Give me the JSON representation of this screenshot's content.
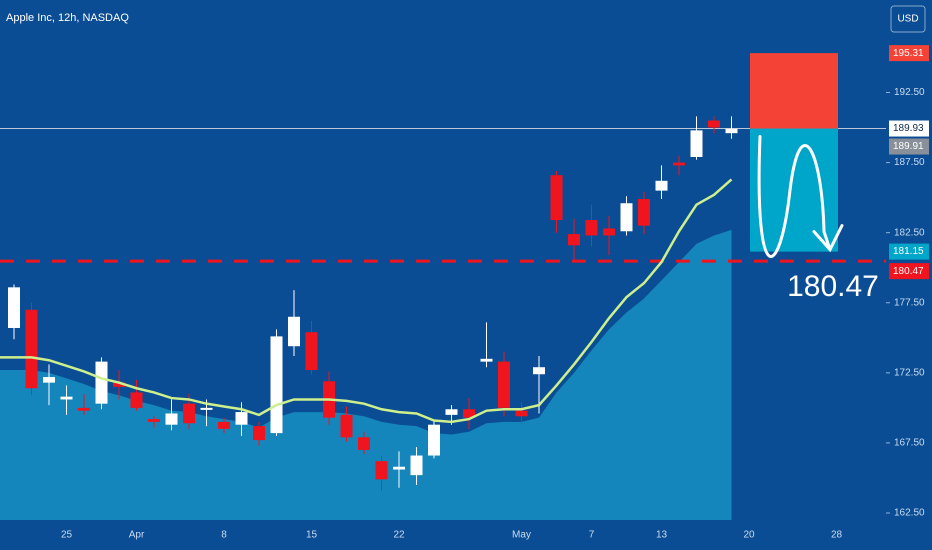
{
  "chart_data": {
    "type": "candlestick",
    "title": "Apple Inc, 12h, NASDAQ",
    "currency": "USD",
    "categories": [
      null,
      null,
      null,
      "25",
      null,
      null,
      null,
      "Apr",
      null,
      null,
      null,
      null,
      "8",
      null,
      null,
      null,
      null,
      "15",
      null,
      null,
      null,
      null,
      "22",
      null,
      null,
      null,
      null,
      null,
      null,
      "May",
      null,
      null,
      null,
      "7",
      null,
      null,
      null,
      "13",
      null,
      null,
      null,
      null,
      "20",
      null,
      null,
      null,
      null,
      "28"
    ],
    "open": [
      175.7,
      177.0,
      171.8,
      170.6,
      170.0,
      170.3,
      171.8,
      171.1,
      169.2,
      168.8,
      170.3,
      169.9,
      169.0,
      168.8,
      168.7,
      168.2,
      174.4,
      175.4,
      171.9,
      169.5,
      167.9,
      166.2,
      165.6,
      165.2,
      166.6,
      169.5,
      169.9,
      173.3,
      173.3,
      169.8,
      172.4,
      186.6,
      182.4,
      183.4,
      182.8,
      182.6,
      184.9,
      185.5,
      187.5,
      187.9,
      190.5,
      189.6,
      null,
      null,
      null,
      null,
      null,
      null
    ],
    "high": [
      178.8,
      177.5,
      173.1,
      171.6,
      171.0,
      173.6,
      172.7,
      172.0,
      169.4,
      170.6,
      171.0,
      170.6,
      169.3,
      170.4,
      169.0,
      175.6,
      178.4,
      176.2,
      172.6,
      170.1,
      168.3,
      166.6,
      166.9,
      167.2,
      169.1,
      170.2,
      170.7,
      176.1,
      174.0,
      170.4,
      173.7,
      186.9,
      183.5,
      184.5,
      183.7,
      185.1,
      185.4,
      187.3,
      188.0,
      190.8,
      190.8,
      190.8,
      null,
      null,
      null,
      null,
      null,
      null
    ],
    "low": [
      174.9,
      170.9,
      170.2,
      169.5,
      169.5,
      169.9,
      170.6,
      169.8,
      168.6,
      168.4,
      168.5,
      168.7,
      168.2,
      168.0,
      167.3,
      168.0,
      173.7,
      172.4,
      168.8,
      167.6,
      166.7,
      164.1,
      164.3,
      164.5,
      166.4,
      168.8,
      168.5,
      172.9,
      169.4,
      168.9,
      169.6,
      182.5,
      180.5,
      181.5,
      180.9,
      182.3,
      182.4,
      184.9,
      186.6,
      187.7,
      189.6,
      189.2,
      null,
      null,
      null,
      null,
      null,
      null
    ],
    "close": [
      178.6,
      171.4,
      172.2,
      170.8,
      169.8,
      173.3,
      171.5,
      170.0,
      169.0,
      169.6,
      168.9,
      170.0,
      168.5,
      169.7,
      167.7,
      175.1,
      176.5,
      172.7,
      169.3,
      167.9,
      167.0,
      164.9,
      165.8,
      166.6,
      168.8,
      169.9,
      169.3,
      173.5,
      170.0,
      169.4,
      172.9,
      183.4,
      181.6,
      182.3,
      182.3,
      184.6,
      183.0,
      186.2,
      187.3,
      189.8,
      190.0,
      189.91,
      null,
      null,
      null,
      null,
      null,
      null
    ],
    "up_color": "#ffffff",
    "down_color": "#f0141e",
    "series": [
      {
        "kind": "area",
        "color": "#1690c2",
        "values": [
          172.7,
          172.7,
          172.5,
          172.1,
          171.7,
          171.2,
          170.9,
          170.5,
          170.2,
          169.8,
          169.7,
          169.4,
          169.2,
          169.0,
          168.6,
          169.3,
          169.7,
          169.7,
          169.7,
          169.6,
          169.4,
          169.0,
          168.8,
          168.7,
          168.2,
          168.1,
          168.3,
          168.9,
          169.0,
          169.0,
          169.3,
          171.1,
          172.5,
          174.1,
          175.6,
          176.8,
          177.8,
          179.1,
          180.4,
          181.7,
          182.3,
          182.7,
          null,
          null,
          null,
          null,
          null,
          null
        ]
      },
      {
        "kind": "line",
        "color": "#cdef8c",
        "values": [
          173.6,
          173.6,
          173.4,
          173.0,
          172.6,
          172.1,
          171.8,
          171.4,
          171.1,
          170.7,
          170.6,
          170.3,
          170.1,
          169.9,
          169.5,
          170.2,
          170.6,
          170.6,
          170.6,
          170.5,
          170.3,
          169.9,
          169.7,
          169.6,
          169.1,
          169.0,
          169.2,
          169.8,
          169.9,
          169.9,
          170.2,
          171.6,
          173.1,
          174.7,
          176.4,
          177.9,
          178.9,
          180.4,
          182.6,
          184.5,
          185.2,
          186.3,
          null,
          null,
          null,
          null,
          null,
          null
        ]
      }
    ],
    "position": {
      "entry": 189.93,
      "stop": 195.31,
      "target": 181.15
    },
    "support": 180.47,
    "ylim": [
      162,
      199.1
    ],
    "yticks": [
      {
        "value": 162.5,
        "label": "162.50"
      },
      {
        "value": 167.5,
        "label": "167.50"
      },
      {
        "value": 172.5,
        "label": "172.50"
      },
      {
        "value": 177.5,
        "label": "177.50"
      },
      {
        "value": 182.5,
        "label": "182.50"
      },
      {
        "value": 187.5,
        "label": "187.50"
      },
      {
        "value": 192.5,
        "label": "192.50"
      }
    ],
    "grid": false
  }
}
